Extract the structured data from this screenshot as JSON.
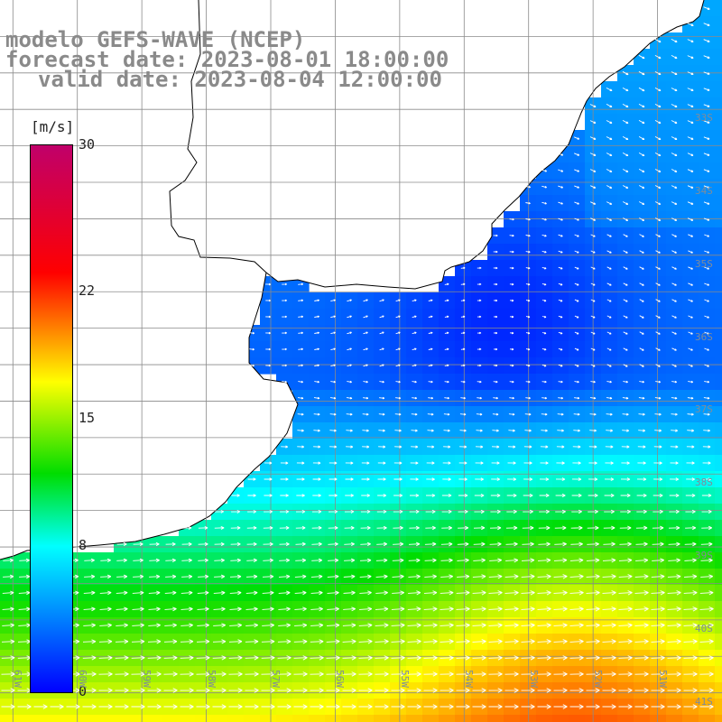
{
  "titles": {
    "line1": "modelo GEFS-WAVE (NCEP)",
    "line2": "forecast date: 2023-08-01 18:00:00",
    "line3": "valid date: 2023-08-04 12:00:00"
  },
  "colorbar": {
    "unit": "[m/s]",
    "min": 0,
    "max": 30,
    "ticks": [
      "30",
      "22",
      "15",
      "8",
      "0"
    ],
    "tick_values": [
      30,
      22,
      15,
      8,
      0
    ],
    "colors": [
      "#0000ff",
      "#00ffff",
      "#00dd00",
      "#ffff00",
      "#ff7f00",
      "#ff0000",
      "#c0006a"
    ],
    "color_stops_ms": [
      0,
      8,
      12,
      17,
      20,
      23,
      30
    ]
  },
  "map": {
    "projection": "regular lat-lon",
    "lon_range_deg_w": [
      61.2,
      50.0
    ],
    "lat_range_deg_s": [
      31.5,
      41.4
    ],
    "grid_lines": true,
    "lat_labels": [
      "33S",
      "34S",
      "35S",
      "36S",
      "37S",
      "38S",
      "39S",
      "40S",
      "41S"
    ],
    "lon_labels": [
      "61W",
      "60W",
      "59W",
      "58W",
      "57W",
      "56W",
      "55W",
      "54W",
      "53W",
      "52W",
      "51W"
    ],
    "land_color": "#ffffff",
    "coastline_color": "#000000",
    "arrow_color": "#ffffff",
    "field": "wind speed (m/s) with direction arrows"
  }
}
